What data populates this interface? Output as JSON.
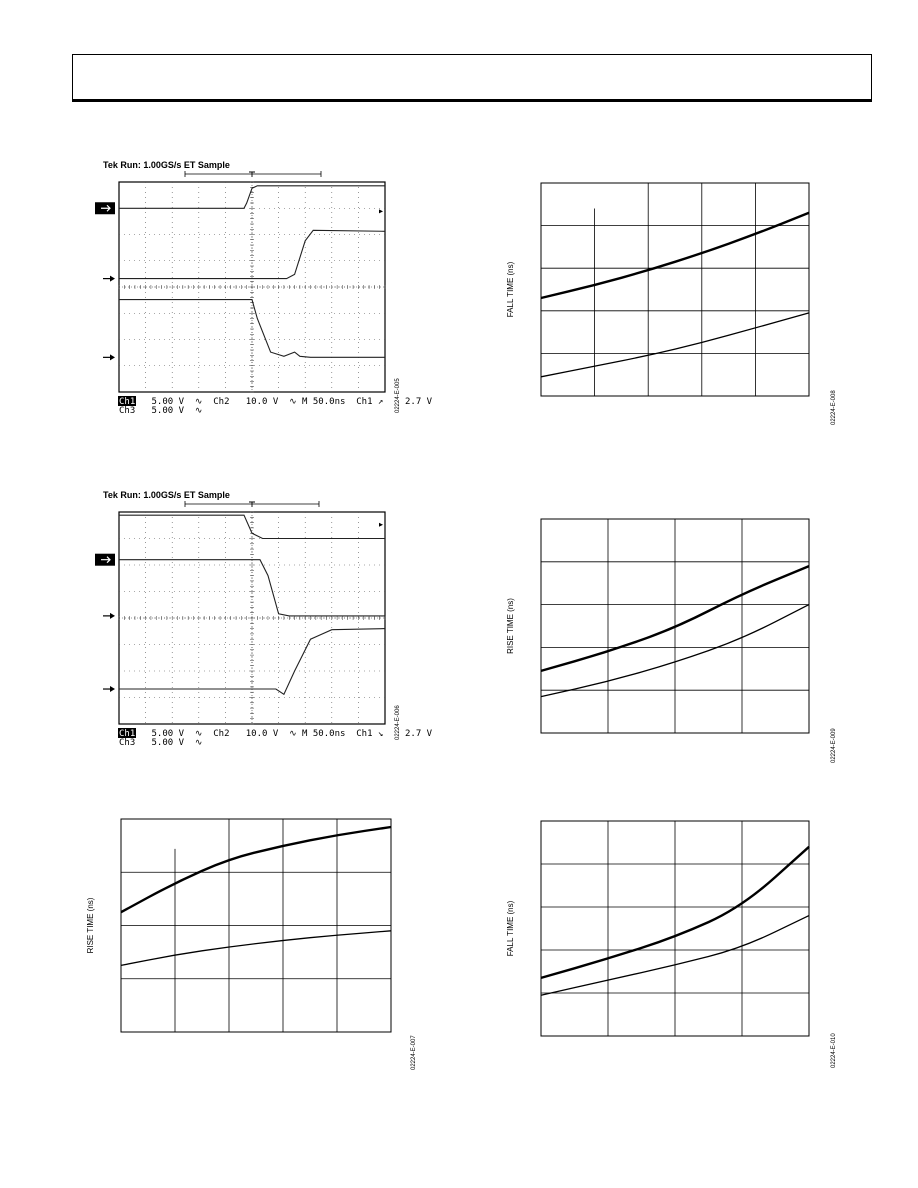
{
  "page": {
    "header_text": ""
  },
  "scope_plots": [
    {
      "id": "scope-1",
      "title": "Tek Run: 1.00GS/s ET Sample",
      "status_line1": "Ch1   5.00 V  ∿  Ch2   10.0 V  ∿ M 50.0ns  Ch1 ↗    2.7 V",
      "status_line2": "Ch3   5.00 V  ∿",
      "fig_code": "02224-E-005",
      "traces": [
        {
          "name": "ch1",
          "points": [
            [
              0,
              0.125
            ],
            [
              0.47,
              0.125
            ],
            [
              0.48,
              0.1
            ],
            [
              0.5,
              0.03
            ],
            [
              0.52,
              0.018
            ],
            [
              1,
              0.018
            ]
          ]
        },
        {
          "name": "ch2",
          "points": [
            [
              0,
              0.46
            ],
            [
              0.63,
              0.46
            ],
            [
              0.66,
              0.44
            ],
            [
              0.7,
              0.28
            ],
            [
              0.73,
              0.23
            ],
            [
              1,
              0.235
            ]
          ]
        },
        {
          "name": "ch3",
          "points": [
            [
              0,
              0.56
            ],
            [
              0.5,
              0.56
            ],
            [
              0.52,
              0.65
            ],
            [
              0.57,
              0.81
            ],
            [
              0.62,
              0.83
            ],
            [
              0.66,
              0.81
            ],
            [
              0.68,
              0.83
            ],
            [
              0.72,
              0.835
            ],
            [
              1,
              0.835
            ]
          ]
        }
      ]
    },
    {
      "id": "scope-2",
      "title": "Tek Run: 1.00GS/s ET Sample",
      "status_line1": "Ch1   5.00 V  ∿  Ch2   10.0 V  ∿ M 50.0ns  Ch1 ↘    2.7 V",
      "status_line2": "Ch3   5.00 V  ∿",
      "fig_code": "02224-E-006",
      "traces": [
        {
          "name": "ch1",
          "points": [
            [
              0,
              0.015
            ],
            [
              0.47,
              0.015
            ],
            [
              0.5,
              0.1
            ],
            [
              0.54,
              0.125
            ],
            [
              1,
              0.125
            ]
          ]
        },
        {
          "name": "ch2",
          "points": [
            [
              0,
              0.225
            ],
            [
              0.53,
              0.225
            ],
            [
              0.56,
              0.3
            ],
            [
              0.6,
              0.48
            ],
            [
              0.64,
              0.49
            ],
            [
              1,
              0.49
            ]
          ]
        },
        {
          "name": "ch3",
          "points": [
            [
              0,
              0.835
            ],
            [
              0.59,
              0.835
            ],
            [
              0.62,
              0.86
            ],
            [
              0.66,
              0.75
            ],
            [
              0.72,
              0.6
            ],
            [
              0.8,
              0.555
            ],
            [
              1,
              0.55
            ]
          ]
        }
      ]
    }
  ],
  "chart_data": [
    {
      "type": "line",
      "id": "chart-fall-1",
      "ylabel": "FALL TIME (ns)",
      "fig_code": "02224-E-008",
      "xlim": [
        0,
        5
      ],
      "ylim": [
        0,
        5
      ],
      "series": [
        {
          "x": [
            0,
            1,
            2,
            3,
            4,
            5
          ],
          "y": [
            2.3,
            2.6,
            2.95,
            3.35,
            3.8,
            4.3
          ],
          "weight": "bold"
        },
        {
          "x": [
            0,
            1,
            2,
            3,
            4,
            5
          ],
          "y": [
            0.45,
            0.7,
            0.95,
            1.25,
            1.6,
            1.95
          ],
          "weight": "normal"
        }
      ]
    },
    {
      "type": "line",
      "id": "chart-rise-1",
      "ylabel": "RISE TIME (ns)",
      "fig_code": "02224-E-009",
      "xlim": [
        0,
        4
      ],
      "ylim": [
        0,
        5
      ],
      "series": [
        {
          "x": [
            0,
            1,
            2,
            3,
            4
          ],
          "y": [
            1.45,
            1.9,
            2.45,
            3.25,
            3.9
          ],
          "weight": "bold"
        },
        {
          "x": [
            0,
            1,
            2,
            3,
            4
          ],
          "y": [
            0.85,
            1.2,
            1.65,
            2.2,
            3.0
          ],
          "weight": "normal"
        }
      ]
    },
    {
      "type": "line",
      "id": "chart-rise-2",
      "ylabel": "RISE TIME (ns)",
      "fig_code": "02224-E-007",
      "xlim": [
        0,
        5
      ],
      "ylim": [
        0,
        4
      ],
      "series": [
        {
          "x": [
            0,
            1,
            2,
            3,
            4,
            5
          ],
          "y": [
            2.25,
            2.8,
            3.25,
            3.5,
            3.7,
            3.85
          ],
          "weight": "bold"
        },
        {
          "x": [
            0,
            1,
            2,
            3,
            4,
            5
          ],
          "y": [
            1.25,
            1.45,
            1.6,
            1.72,
            1.82,
            1.9
          ],
          "weight": "normal"
        }
      ]
    },
    {
      "type": "line",
      "id": "chart-fall-2",
      "ylabel": "FALL TIME (ns)",
      "fig_code": "02224-E-010",
      "xlim": [
        0,
        4
      ],
      "ylim": [
        0,
        5
      ],
      "series": [
        {
          "x": [
            0,
            1,
            2,
            3,
            4
          ],
          "y": [
            1.35,
            1.8,
            2.3,
            3.0,
            4.4
          ],
          "weight": "bold"
        },
        {
          "x": [
            0,
            1,
            2,
            3,
            4
          ],
          "y": [
            0.95,
            1.3,
            1.65,
            2.05,
            2.8
          ],
          "weight": "normal"
        }
      ]
    }
  ]
}
